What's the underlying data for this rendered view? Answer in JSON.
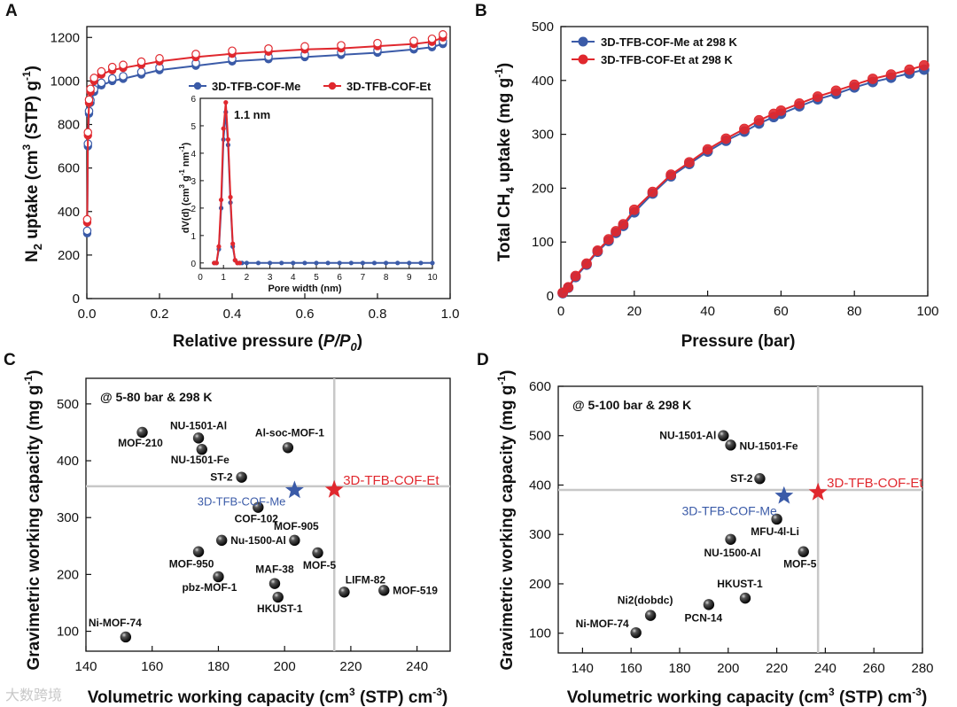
{
  "colors": {
    "me": "#3b5ba8",
    "et": "#e0282e",
    "black": "#111111",
    "refline": "#c8c8c8"
  },
  "chart_data": [
    {
      "panel": "A",
      "type": "line",
      "xlabel_main": "Relative pressure (",
      "xlabel_italic": "P/P",
      "xlabel_sub": "0",
      "xlabel_close": ")",
      "ylabel_pre": "N",
      "ylabel_sub": "2",
      "ylabel_mid": " uptake (cm",
      "ylabel_sup": "3",
      "ylabel_post": " (STP) g",
      "ylabel_sup2": "-1",
      "ylabel_end": ")",
      "xlim": [
        0,
        1.0
      ],
      "ylim": [
        0,
        1250
      ],
      "xticks": [
        "0.0",
        "0.2",
        "0.4",
        "0.6",
        "0.8",
        "1.0"
      ],
      "yticks": [
        "0",
        "200",
        "400",
        "600",
        "800",
        "1000",
        "1200"
      ],
      "legend": [
        "3D-TFB-COF-Me",
        "3D-TFB-COF-Et"
      ],
      "legend_position": "center-right",
      "series": [
        {
          "name": "3D-TFB-COF-Me",
          "color_key": "me",
          "x": [
            0.001,
            0.003,
            0.006,
            0.01,
            0.02,
            0.04,
            0.07,
            0.1,
            0.15,
            0.2,
            0.3,
            0.4,
            0.5,
            0.6,
            0.7,
            0.8,
            0.9,
            0.95,
            0.98
          ],
          "y": [
            300,
            700,
            850,
            900,
            950,
            980,
            1000,
            1010,
            1030,
            1050,
            1070,
            1090,
            1100,
            1110,
            1120,
            1130,
            1145,
            1155,
            1170
          ]
        },
        {
          "name": "3D-TFB-COF-Et",
          "color_key": "et",
          "x": [
            0.001,
            0.003,
            0.006,
            0.01,
            0.02,
            0.04,
            0.07,
            0.1,
            0.15,
            0.2,
            0.3,
            0.4,
            0.5,
            0.6,
            0.7,
            0.8,
            0.9,
            0.95,
            0.98
          ],
          "y": [
            350,
            750,
            900,
            950,
            1000,
            1030,
            1050,
            1060,
            1075,
            1090,
            1110,
            1125,
            1135,
            1145,
            1150,
            1160,
            1170,
            1180,
            1200
          ]
        }
      ],
      "inset": {
        "xlabel": "Pore width (nm)",
        "ylabel_pre": "dV(d) (cm",
        "ylabel_sup": "3",
        "ylabel_mid": " g",
        "ylabel_sup2": "-1",
        "ylabel_mid2": " nm",
        "ylabel_sup3": "-1",
        "ylabel_end": ")",
        "xlim": [
          0,
          10
        ],
        "ylim": [
          -0.2,
          6
        ],
        "xticks": [
          "0",
          "1",
          "2",
          "3",
          "4",
          "5",
          "6",
          "7",
          "8",
          "9",
          "10"
        ],
        "yticks": [
          "0",
          "1",
          "2",
          "3",
          "4",
          "5",
          "6"
        ],
        "annotation": "1.1 nm",
        "series": [
          {
            "name": "3D-TFB-COF-Me",
            "color_key": "me",
            "x": [
              0.6,
              0.7,
              0.8,
              0.9,
              1.0,
              1.1,
              1.2,
              1.3,
              1.4,
              1.5,
              1.6,
              1.7,
              1.8,
              2.0,
              2.5,
              3,
              3.5,
              4,
              4.5,
              5,
              5.5,
              6,
              6.5,
              7,
              7.5,
              8,
              8.5,
              9,
              9.5,
              10
            ],
            "y": [
              0,
              0,
              0.5,
              2.0,
              4.5,
              5.5,
              4.3,
              2.2,
              0.6,
              0.1,
              0,
              0,
              0,
              0,
              0,
              0,
              0,
              0,
              0,
              0,
              0,
              0,
              0,
              0,
              0,
              0,
              0,
              0,
              0,
              0
            ]
          },
          {
            "name": "3D-TFB-COF-Et",
            "color_key": "et",
            "x": [
              0.6,
              0.7,
              0.8,
              0.9,
              1.0,
              1.1,
              1.2,
              1.3,
              1.4,
              1.5,
              1.6,
              1.7
            ],
            "y": [
              0,
              0,
              0.6,
              2.3,
              4.9,
              5.85,
              4.5,
              2.4,
              0.7,
              0.1,
              0,
              0
            ]
          }
        ]
      }
    },
    {
      "panel": "B",
      "type": "line",
      "xlabel": "Pressure (bar)",
      "ylabel_pre": "Total CH",
      "ylabel_sub": "4",
      "ylabel_mid": " uptake (mg g",
      "ylabel_sup": "-1",
      "ylabel_end": ")",
      "xlim": [
        0,
        100
      ],
      "ylim": [
        0,
        500
      ],
      "xticks": [
        "0",
        "20",
        "40",
        "60",
        "80",
        "100"
      ],
      "yticks": [
        "0",
        "100",
        "200",
        "300",
        "400",
        "500"
      ],
      "legend": [
        "3D-TFB-COF-Me at 298 K",
        "3D-TFB-COF-Et at 298 K"
      ],
      "legend_position": "top-left",
      "series": [
        {
          "name": "3D-TFB-COF-Me at 298 K",
          "color_key": "me",
          "x": [
            0.5,
            2,
            4,
            7,
            10,
            13,
            15,
            17,
            20,
            25,
            30,
            35,
            40,
            45,
            50,
            54,
            58,
            60,
            65,
            70,
            75,
            80,
            85,
            90,
            95,
            99
          ],
          "y": [
            5,
            15,
            35,
            58,
            82,
            102,
            117,
            130,
            155,
            190,
            222,
            245,
            268,
            288,
            305,
            320,
            332,
            338,
            352,
            365,
            375,
            387,
            397,
            405,
            413,
            420
          ]
        },
        {
          "name": "3D-TFB-COF-Et at 298 K",
          "color_key": "et",
          "x": [
            0.5,
            2,
            4,
            7,
            10,
            13,
            15,
            17,
            20,
            25,
            30,
            35,
            40,
            45,
            50,
            54,
            58,
            60,
            65,
            70,
            75,
            80,
            85,
            90,
            95,
            99
          ],
          "y": [
            6,
            16,
            37,
            60,
            84,
            105,
            120,
            133,
            160,
            193,
            225,
            248,
            272,
            292,
            310,
            326,
            338,
            344,
            357,
            370,
            381,
            392,
            403,
            411,
            420,
            428
          ]
        }
      ]
    },
    {
      "panel": "C",
      "type": "scatter",
      "xlabel_pre": "Volumetric working capacity (cm",
      "xlabel_sup": "3",
      "xlabel_post": " (STP) cm",
      "xlabel_sup2": "-3",
      "xlabel_end": ")",
      "ylabel_pre": "Gravimetric working capacity (mg g",
      "ylabel_sup": "-1",
      "ylabel_end": ")",
      "condition": "@ 5-80 bar & 298 K",
      "xlim": [
        140,
        250
      ],
      "ylim": [
        65,
        545
      ],
      "xticks": [
        "140",
        "160",
        "180",
        "200",
        "220",
        "240"
      ],
      "yticks": [
        "100",
        "200",
        "300",
        "400",
        "500"
      ],
      "ref_x": 215,
      "ref_y": 355,
      "points": [
        {
          "label": "MOF-210",
          "x": 157,
          "y": 450
        },
        {
          "label": "NU-1501-Al",
          "x": 174,
          "y": 440
        },
        {
          "label": "NU-1501-Fe",
          "x": 175,
          "y": 420
        },
        {
          "label": "Al-soc-MOF-1",
          "x": 201,
          "y": 423
        },
        {
          "label": "ST-2",
          "x": 187,
          "y": 371
        },
        {
          "label": "COF-102",
          "x": 192,
          "y": 318
        },
        {
          "label": "MOF-905",
          "x": 203,
          "y": 260
        },
        {
          "label": "Nu-1500-Al",
          "x": 181,
          "y": 260
        },
        {
          "label": "MOF-950",
          "x": 174,
          "y": 240
        },
        {
          "label": "MOF-5",
          "x": 210,
          "y": 238
        },
        {
          "label": "pbz-MOF-1",
          "x": 180,
          "y": 196
        },
        {
          "label": "MAF-38",
          "x": 197,
          "y": 184
        },
        {
          "label": "HKUST-1",
          "x": 198,
          "y": 160
        },
        {
          "label": "LIFM-82",
          "x": 218,
          "y": 169
        },
        {
          "label": "MOF-519",
          "x": 230,
          "y": 172
        },
        {
          "label": "Ni-MOF-74",
          "x": 152,
          "y": 90
        }
      ],
      "stars": [
        {
          "label": "3D-TFB-COF-Me",
          "x": 203,
          "y": 348,
          "color_key": "me"
        },
        {
          "label": "3D-TFB-COF-Et",
          "x": 215,
          "y": 349,
          "color_key": "et"
        }
      ]
    },
    {
      "panel": "D",
      "type": "scatter",
      "xlabel_pre": "Volumetric working capacity (cm",
      "xlabel_sup": "3",
      "xlabel_post": " (STP) cm",
      "xlabel_sup2": "-3",
      "xlabel_end": ")",
      "ylabel_pre": "Gravimetric working capacity (mg g",
      "ylabel_sup": "-1",
      "ylabel_end": ")",
      "condition": "@ 5-100 bar & 298 K",
      "xlim": [
        130,
        280
      ],
      "ylim": [
        60,
        600
      ],
      "xticks": [
        "140",
        "160",
        "180",
        "200",
        "220",
        "240",
        "260",
        "280"
      ],
      "yticks": [
        "100",
        "200",
        "300",
        "400",
        "500",
        "600"
      ],
      "ref_x": 237,
      "ref_y": 390,
      "points": [
        {
          "label": "NU-1501-Al",
          "x": 198,
          "y": 500
        },
        {
          "label": "NU-1501-Fe",
          "x": 201,
          "y": 481
        },
        {
          "label": "ST-2",
          "x": 213,
          "y": 413
        },
        {
          "label": "MFU-4l-Li",
          "x": 220,
          "y": 331
        },
        {
          "label": "NU-1500-Al",
          "x": 201,
          "y": 290
        },
        {
          "label": "MOF-5",
          "x": 231,
          "y": 265
        },
        {
          "label": "HKUST-1",
          "x": 207,
          "y": 171
        },
        {
          "label": "PCN-14",
          "x": 192,
          "y": 158
        },
        {
          "label": "Ni2(dobdc)",
          "x": 168,
          "y": 136
        },
        {
          "label": "Ni-MOF-74",
          "x": 162,
          "y": 101
        }
      ],
      "stars": [
        {
          "label": "3D-TFB-COF-Me",
          "x": 223,
          "y": 378,
          "color_key": "me"
        },
        {
          "label": "3D-TFB-COF-Et",
          "x": 237,
          "y": 385,
          "color_key": "et"
        }
      ]
    }
  ],
  "watermark": "大数跨境"
}
